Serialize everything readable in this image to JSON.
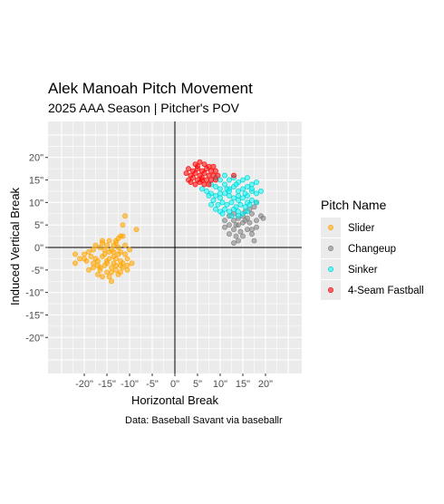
{
  "chart_data": {
    "type": "scatter",
    "title": "Alek Manoah Pitch Movement",
    "subtitle": "2025 AAA Season | Pitcher's POV",
    "xlabel": "Horizontal Break",
    "ylabel": "Induced Vertical Break",
    "caption": "Data: Baseball Savant via baseballr",
    "xlim": [
      -28,
      28
    ],
    "ylim": [
      -28,
      28
    ],
    "x_ticks": [
      -20,
      -15,
      -10,
      -5,
      0,
      5,
      10,
      15,
      20
    ],
    "x_tick_labels": [
      "-20\"",
      "-15\"",
      "-10\"",
      "-5\"",
      "0\"",
      "5\"",
      "10\"",
      "15\"",
      "20\""
    ],
    "y_ticks": [
      -20,
      -15,
      -10,
      -5,
      0,
      5,
      10,
      15,
      20
    ],
    "y_tick_labels": [
      "-20\"",
      "-15\"",
      "-10\"",
      "-5\"",
      "0\"",
      "5\"",
      "10\"",
      "15\"",
      "20\""
    ],
    "grid": true,
    "legend": {
      "title": "Pitch Name",
      "position": "right"
    },
    "series": [
      {
        "name": "Slider",
        "color": "#FFA500",
        "points": [
          [
            -11,
            7
          ],
          [
            -8.5,
            4
          ],
          [
            -11.5,
            5
          ],
          [
            -11.5,
            2.5
          ],
          [
            -12.5,
            2
          ],
          [
            -14.5,
            1.5
          ],
          [
            -13,
            1
          ],
          [
            -16,
            1
          ],
          [
            -15,
            0.5
          ],
          [
            -12.5,
            0
          ],
          [
            -14,
            -0.5
          ],
          [
            -16.5,
            0
          ],
          [
            -18,
            -0.5
          ],
          [
            -19,
            -1
          ],
          [
            -20,
            -1.5
          ],
          [
            -22,
            -1.5
          ],
          [
            -21,
            -2.5
          ],
          [
            -22,
            -3.5
          ],
          [
            -19.5,
            -3
          ],
          [
            -17.5,
            -2.5
          ],
          [
            -15.5,
            -1.5
          ],
          [
            -13.5,
            -2
          ],
          [
            -12,
            -1
          ],
          [
            -11,
            -1.5
          ],
          [
            -10.5,
            -2.5
          ],
          [
            -12,
            -3
          ],
          [
            -13.5,
            -3.5
          ],
          [
            -15,
            -3.5
          ],
          [
            -16.5,
            -4.5
          ],
          [
            -18,
            -4.5
          ],
          [
            -19,
            -5
          ],
          [
            -17,
            -6
          ],
          [
            -15,
            -5.5
          ],
          [
            -13,
            -5
          ],
          [
            -11.5,
            -4.5
          ],
          [
            -10.5,
            -5
          ],
          [
            -12.5,
            -6
          ],
          [
            -14,
            -7.5
          ],
          [
            -14.5,
            -6.5
          ],
          [
            -16,
            -6.5
          ],
          [
            -13.5,
            0.5
          ],
          [
            -14.5,
            -1
          ],
          [
            -13,
            -2.5
          ],
          [
            -12,
            -4
          ],
          [
            -14,
            -4.5
          ],
          [
            -15.5,
            -4
          ],
          [
            -17,
            -3
          ],
          [
            -18.5,
            -2
          ],
          [
            -16,
            -2
          ],
          [
            -12,
            2.5
          ],
          [
            -13,
            1.5
          ],
          [
            -11,
            0.5
          ],
          [
            -10,
            -0.5
          ],
          [
            -9.5,
            -3.5
          ],
          [
            -10.5,
            -4
          ],
          [
            -14.5,
            -2.5
          ],
          [
            -15.5,
            -0.5
          ],
          [
            -17.5,
            0.5
          ],
          [
            -16,
            1.5
          ],
          [
            -13.5,
            -1
          ],
          [
            -12.5,
            -1.5
          ],
          [
            -11.5,
            -3.5
          ],
          [
            -17,
            -4
          ],
          [
            -18,
            -3.5
          ],
          [
            -20,
            -2.5
          ],
          [
            -15,
            -3
          ],
          [
            -14,
            -5.5
          ],
          [
            -13,
            -4
          ],
          [
            -16.5,
            -5
          ],
          [
            -12,
            -5.5
          ]
        ]
      },
      {
        "name": "Changeup",
        "color": "#808080",
        "points": [
          [
            18,
            10
          ],
          [
            17.5,
            9
          ],
          [
            16.5,
            8.5
          ],
          [
            15.5,
            8
          ],
          [
            13,
            7.5
          ],
          [
            12,
            7
          ],
          [
            11,
            6
          ],
          [
            14,
            6.5
          ],
          [
            15,
            7
          ],
          [
            17,
            7.5
          ],
          [
            19,
            7
          ],
          [
            19.5,
            6.5
          ],
          [
            18,
            6
          ],
          [
            16.5,
            5.5
          ],
          [
            15,
            5.5
          ],
          [
            13.5,
            5
          ],
          [
            12,
            5
          ],
          [
            11,
            4.5
          ],
          [
            13,
            4
          ],
          [
            14.5,
            3.5
          ],
          [
            16,
            4
          ],
          [
            18,
            4.5
          ],
          [
            17,
            3
          ],
          [
            15,
            2.5
          ],
          [
            13.5,
            2.5
          ],
          [
            12,
            3
          ],
          [
            14,
            1.5
          ],
          [
            13,
            1
          ],
          [
            17.5,
            1.5
          ],
          [
            15.5,
            6
          ],
          [
            13,
            6
          ],
          [
            16,
            6.5
          ],
          [
            17,
            4
          ],
          [
            14,
            5
          ]
        ]
      },
      {
        "name": "Sinker",
        "color": "#00FFFF",
        "points": [
          [
            9,
            15.5
          ],
          [
            10,
            15
          ],
          [
            11,
            16
          ],
          [
            12,
            15
          ],
          [
            13,
            15.5
          ],
          [
            14,
            14.5
          ],
          [
            15,
            15
          ],
          [
            16,
            15.5
          ],
          [
            17,
            14
          ],
          [
            18,
            14.5
          ],
          [
            8,
            14
          ],
          [
            9,
            13.5
          ],
          [
            10,
            13
          ],
          [
            11,
            14
          ],
          [
            12,
            13
          ],
          [
            13,
            13.5
          ],
          [
            14,
            12.5
          ],
          [
            15,
            13
          ],
          [
            16,
            13.5
          ],
          [
            17,
            12.5
          ],
          [
            18,
            12
          ],
          [
            19,
            12.5
          ],
          [
            6,
            13
          ],
          [
            7,
            12.5
          ],
          [
            8,
            12
          ],
          [
            9,
            11.5
          ],
          [
            10,
            11
          ],
          [
            11,
            12
          ],
          [
            12,
            11.5
          ],
          [
            13,
            11
          ],
          [
            14,
            10.5
          ],
          [
            15,
            11
          ],
          [
            16,
            11.5
          ],
          [
            17,
            10.5
          ],
          [
            18,
            10
          ],
          [
            8.5,
            10.5
          ],
          [
            9.5,
            9.5
          ],
          [
            10.5,
            10
          ],
          [
            11.5,
            9.5
          ],
          [
            12.5,
            10
          ],
          [
            13.5,
            9
          ],
          [
            14.5,
            9.5
          ],
          [
            15.5,
            9
          ],
          [
            16.5,
            9.5
          ],
          [
            9,
            8.5
          ],
          [
            10,
            8
          ],
          [
            11,
            8.5
          ],
          [
            12,
            8
          ],
          [
            13,
            8.5
          ],
          [
            14,
            8
          ],
          [
            15,
            7.5
          ],
          [
            16,
            8
          ],
          [
            10.5,
            7.5
          ],
          [
            12.5,
            7
          ],
          [
            14,
            7
          ],
          [
            8,
            9.5
          ],
          [
            7.5,
            11.5
          ],
          [
            11.5,
            13
          ],
          [
            13.5,
            14
          ],
          [
            15.5,
            12
          ],
          [
            12,
            12.5
          ],
          [
            14,
            11.5
          ],
          [
            16,
            10
          ],
          [
            10,
            12
          ],
          [
            17,
            13
          ]
        ]
      },
      {
        "name": "4-Seam Fastball",
        "color": "#FF0000",
        "points": [
          [
            4.5,
            18.5
          ],
          [
            5.5,
            19
          ],
          [
            6.5,
            18.5
          ],
          [
            7.5,
            18
          ],
          [
            8.5,
            18
          ],
          [
            3,
            17.5
          ],
          [
            4,
            17
          ],
          [
            5,
            17.5
          ],
          [
            6,
            17
          ],
          [
            7,
            17.5
          ],
          [
            8,
            17
          ],
          [
            9,
            17
          ],
          [
            2.5,
            16.5
          ],
          [
            3.5,
            16
          ],
          [
            4.5,
            16.5
          ],
          [
            5.5,
            16
          ],
          [
            6.5,
            16.5
          ],
          [
            7.5,
            16
          ],
          [
            8.5,
            16
          ],
          [
            9.5,
            16
          ],
          [
            3,
            15
          ],
          [
            4,
            15.5
          ],
          [
            5,
            15
          ],
          [
            6,
            15.5
          ],
          [
            7,
            15
          ],
          [
            8,
            15
          ],
          [
            9,
            15
          ],
          [
            4.5,
            14
          ],
          [
            5.5,
            14.5
          ],
          [
            6.5,
            14
          ],
          [
            13,
            16
          ],
          [
            7.5,
            14
          ],
          [
            3.5,
            14.5
          ],
          [
            5,
            18
          ],
          [
            6,
            15
          ]
        ]
      }
    ]
  }
}
